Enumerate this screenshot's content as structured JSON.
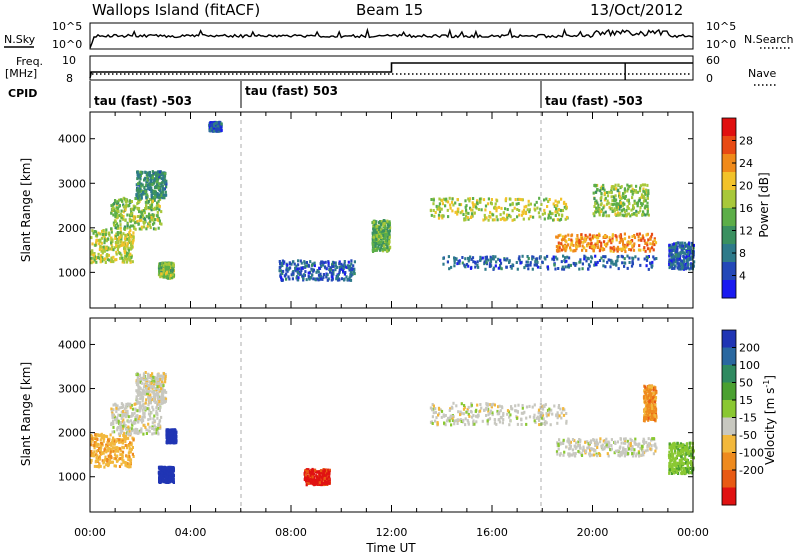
{
  "header": {
    "title": "Wallops Island (fitACF)",
    "beam": "Beam 15",
    "date": "13/Oct/2012"
  },
  "status_panels": {
    "nsky_label": "N.Sky",
    "nsearch_label": "N.Search",
    "noise_left_ticks": [
      "10^5",
      "10^0"
    ],
    "noise_right_ticks": [
      "10^5",
      "10^0"
    ],
    "freq_label_1": "Freq.",
    "freq_label_2": "[MHz]",
    "freq_ticks": [
      "10",
      "8"
    ],
    "nave_label": "Nave",
    "nave_ticks": [
      "60",
      "0"
    ],
    "cpid_label": "CPID",
    "cpid_segments": [
      {
        "label": "tau (fast) -503",
        "start_hour": 0
      },
      {
        "label": "tau (fast) 503",
        "start_hour": 6
      },
      {
        "label": "tau (fast) -503",
        "start_hour": 18
      }
    ]
  },
  "x_axis": {
    "label": "Time UT",
    "ticks": [
      "00:00",
      "04:00",
      "08:00",
      "12:00",
      "16:00",
      "20:00",
      "00:00"
    ]
  },
  "colors": {
    "power_scale": [
      "#1a1af0",
      "#2348b8",
      "#2e7a8a",
      "#3a9060",
      "#5cae48",
      "#a8c83a",
      "#f2c22a",
      "#f08a1a",
      "#e84a14",
      "#e01010"
    ],
    "velocity_scale": [
      "#2035b4",
      "#2a68a0",
      "#2f8a60",
      "#4aa030",
      "#8ac832",
      "#c8c8c0",
      "#f2b83c",
      "#ee8a1e",
      "#e85a14",
      "#e01212"
    ]
  },
  "chart_data": [
    {
      "type": "heatmap",
      "name": "power",
      "ylabel": "Slant Range [km]",
      "yticks": [
        "1000",
        "2000",
        "3000",
        "4000"
      ],
      "ylim": [
        200,
        4600
      ],
      "xlim_hours": [
        0,
        24
      ],
      "colorbar_label": "Power [dB]",
      "colorbar_ticks": [
        "4",
        "8",
        "12",
        "16",
        "20",
        "24",
        "28"
      ],
      "colorbar_range": [
        0,
        32
      ],
      "features": [
        {
          "hours": [
            0.0,
            1.7
          ],
          "range_km": [
            1250,
            2000
          ],
          "level": 18
        },
        {
          "hours": [
            0.8,
            2.8
          ],
          "range_km": [
            2000,
            2700
          ],
          "level": 16
        },
        {
          "hours": [
            1.8,
            3.0
          ],
          "range_km": [
            2700,
            3300
          ],
          "level": 10
        },
        {
          "hours": [
            2.7,
            3.3
          ],
          "range_km": [
            900,
            1250
          ],
          "level": 16
        },
        {
          "hours": [
            4.7,
            5.2
          ],
          "range_km": [
            4200,
            4400
          ],
          "level": 6
        },
        {
          "hours": [
            7.5,
            10.5
          ],
          "range_km": [
            850,
            1300
          ],
          "level": 6
        },
        {
          "hours": [
            11.2,
            11.9
          ],
          "range_km": [
            1500,
            2200
          ],
          "level": 14
        },
        {
          "hours": [
            13.5,
            19.0
          ],
          "range_km": [
            2200,
            2700
          ],
          "level": 18
        },
        {
          "hours": [
            18.5,
            22.5
          ],
          "range_km": [
            1500,
            1900
          ],
          "level": 24
        },
        {
          "hours": [
            14.0,
            22.5
          ],
          "range_km": [
            1100,
            1400
          ],
          "level": 6
        },
        {
          "hours": [
            20.0,
            22.2
          ],
          "range_km": [
            2300,
            3000
          ],
          "level": 16
        },
        {
          "hours": [
            23.0,
            24.0
          ],
          "range_km": [
            1100,
            1700
          ],
          "level": 6
        }
      ]
    },
    {
      "type": "heatmap",
      "name": "velocity",
      "ylabel": "Slant Range [km]",
      "yticks": [
        "1000",
        "2000",
        "3000",
        "4000"
      ],
      "ylim": [
        200,
        4600
      ],
      "xlim_hours": [
        0,
        24
      ],
      "colorbar_label": "Velocity [m s^-1]",
      "colorbar_ticks": [
        "200",
        "100",
        "50",
        "15",
        "-15",
        "-50",
        "-100",
        "-200"
      ],
      "colorbar_range": [
        250,
        -250
      ],
      "features": [
        {
          "hours": [
            0.0,
            1.7
          ],
          "range_km": [
            1250,
            2000
          ],
          "velocity": -40
        },
        {
          "hours": [
            0.8,
            2.8
          ],
          "range_km": [
            2000,
            2700
          ],
          "velocity": 0
        },
        {
          "hours": [
            1.8,
            3.0
          ],
          "range_km": [
            2700,
            3400
          ],
          "velocity": 0
        },
        {
          "hours": [
            2.7,
            3.3
          ],
          "range_km": [
            900,
            1250
          ],
          "velocity": 220
        },
        {
          "hours": [
            3.0,
            3.4
          ],
          "range_km": [
            1800,
            2100
          ],
          "velocity": 220
        },
        {
          "hours": [
            8.5,
            9.5
          ],
          "range_km": [
            850,
            1200
          ],
          "velocity": -110
        },
        {
          "hours": [
            13.5,
            19.0
          ],
          "range_km": [
            2200,
            2700
          ],
          "velocity": 0
        },
        {
          "hours": [
            18.5,
            22.5
          ],
          "range_km": [
            1500,
            1900
          ],
          "velocity": 0
        },
        {
          "hours": [
            22.0,
            22.5
          ],
          "range_km": [
            2300,
            3100
          ],
          "velocity": -60
        },
        {
          "hours": [
            23.0,
            24.0
          ],
          "range_km": [
            1100,
            1800
          ],
          "velocity": 40
        }
      ]
    }
  ]
}
